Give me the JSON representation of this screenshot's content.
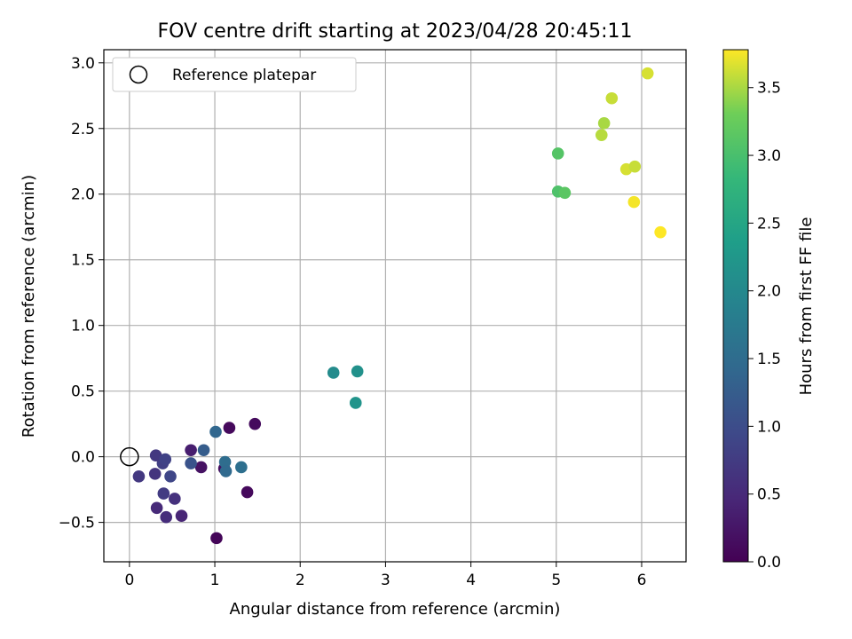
{
  "chart_data": {
    "type": "scatter",
    "title": "FOV centre drift starting at 2023/04/28 20:45:11",
    "xlabel": "Angular distance from reference (arcmin)",
    "ylabel": "Rotation from reference (arcmin)",
    "colorbar_label": "Hours from first FF file",
    "xlim": [
      -0.3,
      6.52
    ],
    "ylim": [
      -0.8,
      3.1
    ],
    "clim": [
      0.0,
      3.78
    ],
    "colormap": "viridis",
    "grid": true,
    "legend": {
      "placement": "top-left",
      "entries": [
        "Reference platepar"
      ]
    },
    "x_ticks": [
      "0",
      "1",
      "2",
      "3",
      "4",
      "5",
      "6"
    ],
    "x_tick_values": [
      0,
      1,
      2,
      3,
      4,
      5,
      6
    ],
    "y_ticks": [
      "−0.5",
      "0.0",
      "0.5",
      "1.0",
      "1.5",
      "2.0",
      "2.5",
      "3.0"
    ],
    "y_tick_values": [
      -0.5,
      0.0,
      0.5,
      1.0,
      1.5,
      2.0,
      2.5,
      3.0
    ],
    "colorbar_ticks": [
      "0.0",
      "0.5",
      "1.0",
      "1.5",
      "2.0",
      "2.5",
      "3.0",
      "3.5"
    ],
    "colorbar_tick_values": [
      0.0,
      0.5,
      1.0,
      1.5,
      2.0,
      2.5,
      3.0,
      3.5
    ],
    "reference_point": {
      "x": 0.0,
      "y": 0.0
    },
    "points": [
      {
        "x": 1.02,
        "y": -0.62,
        "hours": 0.05
      },
      {
        "x": 1.38,
        "y": -0.27,
        "hours": 0.1
      },
      {
        "x": 1.11,
        "y": -0.09,
        "hours": 0.15
      },
      {
        "x": 1.47,
        "y": 0.25,
        "hours": 0.12
      },
      {
        "x": 1.17,
        "y": 0.22,
        "hours": 0.1
      },
      {
        "x": 0.84,
        "y": -0.08,
        "hours": 0.2
      },
      {
        "x": 0.72,
        "y": 0.05,
        "hours": 0.35
      },
      {
        "x": 0.61,
        "y": -0.45,
        "hours": 0.45
      },
      {
        "x": 0.43,
        "y": -0.46,
        "hours": 0.55
      },
      {
        "x": 0.32,
        "y": -0.39,
        "hours": 0.5
      },
      {
        "x": 0.53,
        "y": -0.32,
        "hours": 0.6
      },
      {
        "x": 0.4,
        "y": -0.28,
        "hours": 0.75
      },
      {
        "x": 0.11,
        "y": -0.15,
        "hours": 0.7
      },
      {
        "x": 0.3,
        "y": -0.13,
        "hours": 0.65
      },
      {
        "x": 0.48,
        "y": -0.15,
        "hours": 0.9
      },
      {
        "x": 0.39,
        "y": -0.05,
        "hours": 0.8
      },
      {
        "x": 0.31,
        "y": 0.01,
        "hours": 0.7
      },
      {
        "x": 0.42,
        "y": -0.02,
        "hours": 0.85
      },
      {
        "x": 0.72,
        "y": -0.05,
        "hours": 1.1
      },
      {
        "x": 0.87,
        "y": 0.05,
        "hours": 1.25
      },
      {
        "x": 1.01,
        "y": 0.19,
        "hours": 1.4
      },
      {
        "x": 1.12,
        "y": -0.04,
        "hours": 1.5
      },
      {
        "x": 1.13,
        "y": -0.11,
        "hours": 1.45
      },
      {
        "x": 1.31,
        "y": -0.08,
        "hours": 1.55
      },
      {
        "x": 2.39,
        "y": 0.64,
        "hours": 2.05
      },
      {
        "x": 2.67,
        "y": 0.65,
        "hours": 2.15
      },
      {
        "x": 2.65,
        "y": 0.41,
        "hours": 2.2
      },
      {
        "x": 5.02,
        "y": 2.31,
        "hours": 3.1
      },
      {
        "x": 5.02,
        "y": 2.02,
        "hours": 3.05
      },
      {
        "x": 5.1,
        "y": 2.01,
        "hours": 3.15
      },
      {
        "x": 5.53,
        "y": 2.45,
        "hours": 3.55
      },
      {
        "x": 5.56,
        "y": 2.54,
        "hours": 3.5
      },
      {
        "x": 5.65,
        "y": 2.73,
        "hours": 3.6
      },
      {
        "x": 6.07,
        "y": 2.92,
        "hours": 3.65
      },
      {
        "x": 5.82,
        "y": 2.19,
        "hours": 3.65
      },
      {
        "x": 5.92,
        "y": 2.21,
        "hours": 3.6
      },
      {
        "x": 5.91,
        "y": 1.94,
        "hours": 3.75
      },
      {
        "x": 6.22,
        "y": 1.71,
        "hours": 3.78
      }
    ]
  }
}
